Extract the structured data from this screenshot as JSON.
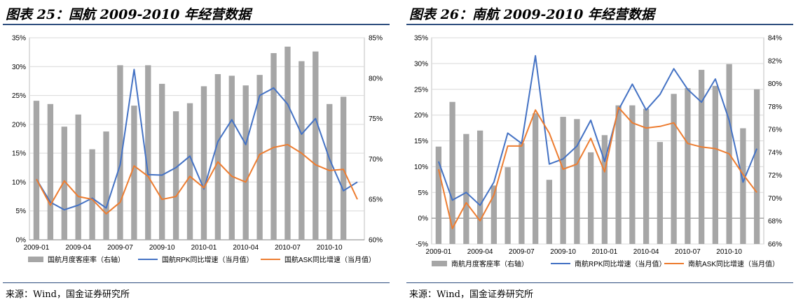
{
  "panels": [
    {
      "title": "图表 25：国航 2009-2010 年经营数据",
      "source": "来源：Wind，国金证券研究所",
      "chart_data": {
        "type": "bar",
        "title": "",
        "xlabel": "",
        "ylabel": "",
        "grid": true,
        "legend_position": "bottom",
        "categories": [
          "2009-01",
          "2009-02",
          "2009-03",
          "2009-04",
          "2009-05",
          "2009-06",
          "2009-07",
          "2009-08",
          "2009-09",
          "2009-10",
          "2009-11",
          "2009-12",
          "2010-01",
          "2010-02",
          "2010-03",
          "2010-04",
          "2010-05",
          "2010-06",
          "2010-07",
          "2010-08",
          "2010-09",
          "2010-10",
          "2010-11",
          "2010-12"
        ],
        "x_tick_labels": [
          "2009-01",
          "2009-04",
          "2009-07",
          "2009-10",
          "2010-01",
          "2010-04",
          "2010-07",
          "2010-10"
        ],
        "x_tick_every": 3,
        "left_axis": {
          "ylim": [
            0,
            35
          ],
          "step": 5,
          "unit": "%",
          "tick_labels": [
            "0%",
            "5%",
            "10%",
            "15%",
            "20%",
            "25%",
            "30%",
            "35%"
          ]
        },
        "right_axis": {
          "ylim": [
            60,
            85
          ],
          "step": 5,
          "unit": "%",
          "tick_labels": [
            "60%",
            "65%",
            "70%",
            "75%",
            "80%",
            "85%"
          ]
        },
        "series": [
          {
            "name": "国航月度客座率（右轴）",
            "type": "bar",
            "axis": "right",
            "color": "#a6a6a6",
            "values": [
              77.2,
              76.8,
              74.0,
              75.5,
              71.2,
              73.4,
              81.6,
              76.6,
              81.6,
              79.3,
              75.9,
              76.9,
              79.0,
              80.5,
              80.3,
              79.1,
              80.4,
              83.1,
              83.9,
              82.1,
              83.3,
              76.8,
              77.7,
              null
            ]
          },
          {
            "name": "国航RPK同比增速（当月值）",
            "type": "line",
            "axis": "left",
            "color": "#4472c4",
            "values": [
              10.5,
              6.5,
              5.2,
              6.0,
              7.2,
              5.5,
              13.0,
              29.5,
              11.3,
              11.2,
              12.5,
              14.5,
              8.8,
              17.0,
              20.8,
              16.5,
              25.0,
              26.3,
              23.5,
              18.3,
              21.0,
              14.0,
              8.5,
              10.0
            ]
          },
          {
            "name": "国航ASK同比增速（当月值）",
            "type": "line",
            "axis": "left",
            "color": "#ed7d31",
            "values": [
              10.5,
              6.0,
              10.2,
              7.5,
              7.0,
              4.5,
              6.5,
              12.8,
              11.0,
              7.0,
              7.5,
              11.0,
              9.0,
              13.5,
              11.0,
              10.0,
              14.8,
              16.0,
              16.5,
              15.0,
              13.0,
              12.0,
              12.2,
              7.0
            ]
          }
        ]
      }
    },
    {
      "title": "图表 26：南航 2009-2010 年经营数据",
      "source": "来源：Wind，国金证券研究所",
      "chart_data": {
        "type": "bar",
        "title": "",
        "xlabel": "",
        "ylabel": "",
        "grid": true,
        "legend_position": "bottom",
        "categories": [
          "2009-01",
          "2009-02",
          "2009-03",
          "2009-04",
          "2009-05",
          "2009-06",
          "2009-07",
          "2009-08",
          "2009-09",
          "2009-10",
          "2009-11",
          "2009-12",
          "2010-01",
          "2010-02",
          "2010-03",
          "2010-04",
          "2010-05",
          "2010-06",
          "2010-07",
          "2010-08",
          "2010-09",
          "2010-10",
          "2010-11",
          "2010-12"
        ],
        "x_tick_labels": [
          "2009-01",
          "2009-04",
          "2009-07",
          "2009-10",
          "2010-01",
          "2010-04",
          "2010-07",
          "2010-10"
        ],
        "x_tick_every": 3,
        "left_axis": {
          "ylim": [
            -5,
            35
          ],
          "step": 5,
          "unit": "%",
          "tick_labels": [
            "-5%",
            "0%",
            "5%",
            "10%",
            "15%",
            "20%",
            "25%",
            "30%",
            "35%"
          ]
        },
        "right_axis": {
          "ylim": [
            66,
            84
          ],
          "step": 2,
          "unit": "%",
          "tick_labels": [
            "66%",
            "68%",
            "70%",
            "72%",
            "74%",
            "76%",
            "78%",
            "80%",
            "82%",
            "84%"
          ]
        },
        "series": [
          {
            "name": "南航月度客座率（右轴）",
            "type": "bar",
            "axis": "right",
            "color": "#a6a6a6",
            "values": [
              74.5,
              78.4,
              75.6,
              75.9,
              71.1,
              72.7,
              74.8,
              77.4,
              71.6,
              77.1,
              76.9,
              74.0,
              75.5,
              78.1,
              78.1,
              77.8,
              74.9,
              79.1,
              79.6,
              81.2,
              79.8,
              81.7,
              76.1,
              79.5
            ]
          },
          {
            "name": "南航RPK同比增速（当月值）",
            "type": "line",
            "axis": "left",
            "color": "#4472c4",
            "values": [
              11.0,
              3.5,
              5.0,
              2.5,
              7.0,
              16.5,
              14.5,
              31.5,
              10.5,
              11.5,
              14.0,
              19.0,
              11.0,
              21.0,
              26.0,
              21.0,
              24.0,
              29.0,
              25.0,
              22.5,
              27.0,
              19.0,
              7.0,
              13.5
            ]
          },
          {
            "name": "南航ASK同比增速（当月值）",
            "type": "line",
            "axis": "left",
            "color": "#ed7d31",
            "values": [
              9.5,
              -2.0,
              3.0,
              -0.5,
              4.5,
              14.0,
              14.0,
              21.0,
              16.5,
              9.5,
              10.5,
              15.5,
              9.0,
              21.5,
              18.5,
              17.5,
              17.8,
              18.5,
              14.5,
              13.8,
              13.5,
              12.5,
              8.5,
              5.0
            ]
          }
        ]
      }
    }
  ]
}
